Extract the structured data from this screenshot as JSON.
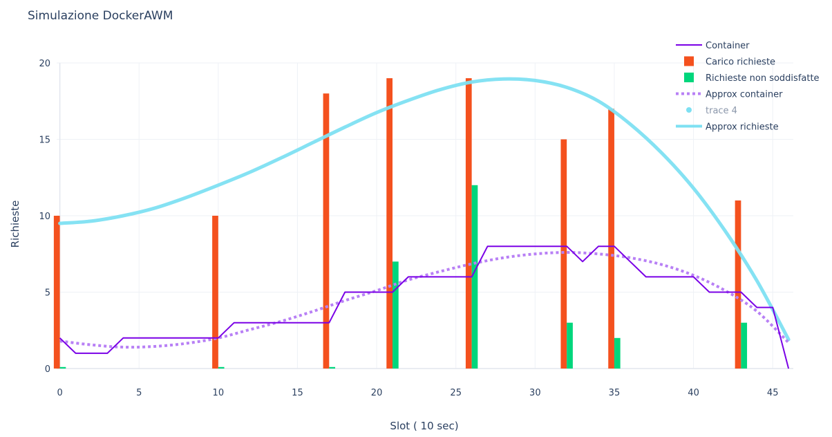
{
  "chart_data": {
    "type": "bar+line",
    "title": "Simulazione DockerAWM",
    "xlabel": "Slot ( 10 sec)",
    "ylabel": "Richieste",
    "xlim": [
      -0.2,
      46.3
    ],
    "ylim": [
      0,
      20
    ],
    "x_ticks": [
      0,
      5,
      10,
      15,
      20,
      25,
      30,
      35,
      40,
      45
    ],
    "y_ticks": [
      0,
      5,
      10,
      15,
      20
    ],
    "legend_position": "top-right",
    "colors": {
      "container": "#7a00e6",
      "carico": "#f4511e",
      "non_soddisfatte": "#00d67c",
      "approx_container": "#b880f5",
      "trace4": "#7ee0f2",
      "approx_richieste": "#7ee0f2"
    },
    "series": [
      {
        "name": "Container",
        "kind": "line",
        "points": [
          [
            0,
            2
          ],
          [
            1,
            1
          ],
          [
            2,
            1
          ],
          [
            3,
            1
          ],
          [
            4,
            2
          ],
          [
            5,
            2
          ],
          [
            6,
            2
          ],
          [
            7,
            2
          ],
          [
            8,
            2
          ],
          [
            9,
            2
          ],
          [
            10,
            2
          ],
          [
            11,
            3
          ],
          [
            12,
            3
          ],
          [
            13,
            3
          ],
          [
            14,
            3
          ],
          [
            15,
            3
          ],
          [
            16,
            3
          ],
          [
            17,
            3
          ],
          [
            18,
            5
          ],
          [
            19,
            5
          ],
          [
            20,
            5
          ],
          [
            21,
            5
          ],
          [
            22,
            6
          ],
          [
            23,
            6
          ],
          [
            24,
            6
          ],
          [
            25,
            6
          ],
          [
            26,
            6
          ],
          [
            27,
            8
          ],
          [
            28,
            8
          ],
          [
            29,
            8
          ],
          [
            30,
            8
          ],
          [
            31,
            8
          ],
          [
            32,
            8
          ],
          [
            33,
            7
          ],
          [
            34,
            8
          ],
          [
            35,
            8
          ],
          [
            36,
            7
          ],
          [
            37,
            6
          ],
          [
            38,
            6
          ],
          [
            39,
            6
          ],
          [
            40,
            6
          ],
          [
            41,
            5
          ],
          [
            42,
            5
          ],
          [
            43,
            5
          ],
          [
            44,
            4
          ],
          [
            45,
            4
          ],
          [
            46,
            0
          ]
        ]
      },
      {
        "name": "Carico richieste",
        "kind": "bar",
        "points": [
          [
            0,
            10
          ],
          [
            10,
            10
          ],
          [
            17,
            18
          ],
          [
            21,
            19
          ],
          [
            26,
            19
          ],
          [
            32,
            15
          ],
          [
            35,
            17
          ],
          [
            43,
            11
          ]
        ]
      },
      {
        "name": "Richieste non soddisfatte",
        "kind": "bar",
        "points": [
          [
            0,
            0.1
          ],
          [
            10,
            0.1
          ],
          [
            17,
            0.1
          ],
          [
            21,
            7
          ],
          [
            26,
            12
          ],
          [
            32,
            3
          ],
          [
            35,
            2
          ],
          [
            43,
            3
          ]
        ]
      },
      {
        "name": "Approx container",
        "kind": "line-dotted",
        "points": [
          [
            0,
            1.8
          ],
          [
            2,
            1.55
          ],
          [
            4,
            1.4
          ],
          [
            6,
            1.45
          ],
          [
            8,
            1.65
          ],
          [
            10,
            2.0
          ],
          [
            12,
            2.55
          ],
          [
            14,
            3.1
          ],
          [
            16,
            3.75
          ],
          [
            18,
            4.45
          ],
          [
            20,
            5.1
          ],
          [
            22,
            5.8
          ],
          [
            24,
            6.35
          ],
          [
            26,
            6.85
          ],
          [
            28,
            7.25
          ],
          [
            30,
            7.5
          ],
          [
            32,
            7.6
          ],
          [
            34,
            7.5
          ],
          [
            36,
            7.25
          ],
          [
            38,
            6.8
          ],
          [
            40,
            6.1
          ],
          [
            42,
            5.1
          ],
          [
            44,
            3.75
          ],
          [
            46,
            1.7
          ]
        ]
      },
      {
        "name": "trace 4",
        "kind": "marker",
        "points": []
      },
      {
        "name": "Approx richieste",
        "kind": "line-thick",
        "points": [
          [
            0,
            9.5
          ],
          [
            2,
            9.65
          ],
          [
            4,
            10.0
          ],
          [
            6,
            10.5
          ],
          [
            8,
            11.2
          ],
          [
            10,
            12.0
          ],
          [
            12,
            12.85
          ],
          [
            14,
            13.8
          ],
          [
            16,
            14.8
          ],
          [
            18,
            15.8
          ],
          [
            20,
            16.75
          ],
          [
            22,
            17.55
          ],
          [
            24,
            18.25
          ],
          [
            26,
            18.75
          ],
          [
            28,
            18.95
          ],
          [
            30,
            18.85
          ],
          [
            32,
            18.4
          ],
          [
            34,
            17.5
          ],
          [
            36,
            16.0
          ],
          [
            38,
            14.1
          ],
          [
            40,
            11.8
          ],
          [
            42,
            9.0
          ],
          [
            44,
            5.75
          ],
          [
            46,
            1.9
          ]
        ]
      }
    ]
  }
}
